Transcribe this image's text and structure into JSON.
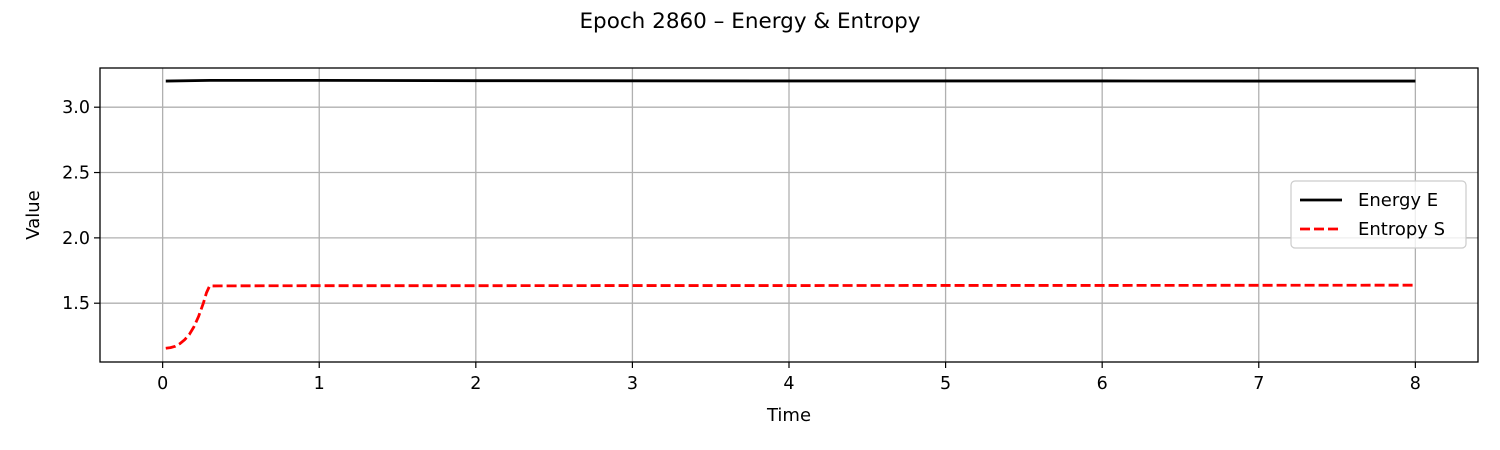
{
  "chart_data": {
    "type": "line",
    "title": "Epoch 2860 – Energy & Entropy",
    "xlabel": "Time",
    "ylabel": "Value",
    "xlim": [
      -0.4,
      8.4
    ],
    "ylim": [
      1.05,
      3.3
    ],
    "xticks": [
      0,
      1,
      2,
      3,
      4,
      5,
      6,
      7,
      8
    ],
    "xtick_labels": [
      "0",
      "1",
      "2",
      "3",
      "4",
      "5",
      "6",
      "7",
      "8"
    ],
    "yticks": [
      1.5,
      2.0,
      2.5,
      3.0
    ],
    "ytick_labels": [
      "1.5",
      "2.0",
      "2.5",
      "3.0"
    ],
    "grid": true,
    "legend_position": "center-right",
    "series": [
      {
        "name": "Energy E",
        "color": "#000000",
        "style": "solid",
        "x": [
          0.02,
          0.3,
          1,
          2,
          3,
          4,
          5,
          6,
          7,
          8
        ],
        "y": [
          3.2,
          3.205,
          3.205,
          3.203,
          3.202,
          3.201,
          3.201,
          3.201,
          3.2,
          3.2
        ]
      },
      {
        "name": "Entropy S",
        "color": "#ff0000",
        "style": "dashed",
        "x": [
          0.02,
          0.05,
          0.08,
          0.11,
          0.14,
          0.17,
          0.2,
          0.23,
          0.26,
          0.28,
          0.3,
          0.5,
          1,
          2,
          3,
          4,
          5,
          6,
          7,
          8
        ],
        "y": [
          1.155,
          1.16,
          1.17,
          1.19,
          1.22,
          1.26,
          1.32,
          1.4,
          1.5,
          1.58,
          1.632,
          1.633,
          1.634,
          1.634,
          1.635,
          1.635,
          1.636,
          1.636,
          1.637,
          1.638
        ]
      }
    ]
  }
}
